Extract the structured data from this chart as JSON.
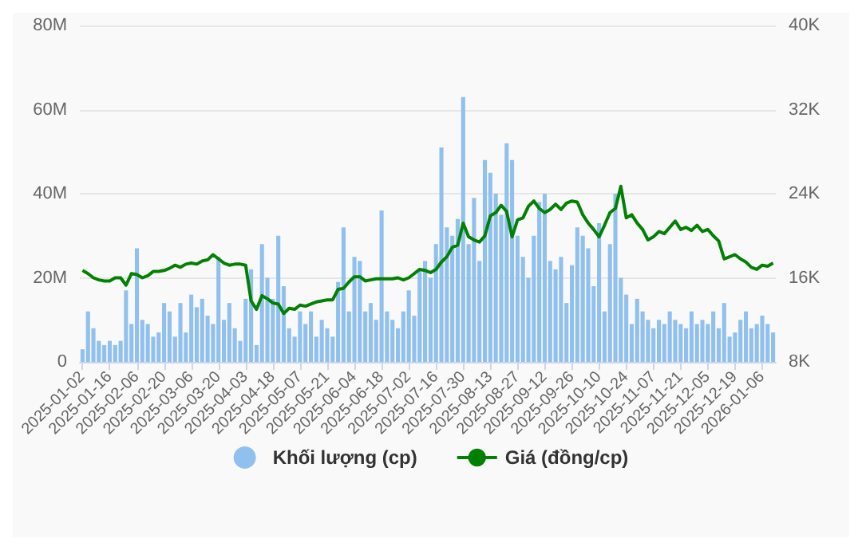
{
  "chart_data": {
    "type": "bar",
    "categories": [
      "2025-01-02",
      null,
      null,
      null,
      null,
      "2025-01-16",
      null,
      null,
      null,
      null,
      "2025-02-06",
      null,
      null,
      null,
      null,
      "2025-02-20",
      null,
      null,
      null,
      null,
      "2025-03-06",
      null,
      null,
      null,
      null,
      "2025-03-20",
      null,
      null,
      null,
      null,
      "2025-04-03",
      null,
      null,
      null,
      null,
      "2025-04-18",
      null,
      null,
      null,
      null,
      "2025-05-07",
      null,
      null,
      null,
      null,
      "2025-05-21",
      null,
      null,
      null,
      null,
      "2025-06-04",
      null,
      null,
      null,
      null,
      "2025-06-18",
      null,
      null,
      null,
      null,
      "2025-07-02",
      null,
      null,
      null,
      null,
      "2025-07-16",
      null,
      null,
      null,
      null,
      "2025-07-30",
      null,
      null,
      null,
      null,
      "2025-08-13",
      null,
      null,
      null,
      null,
      "2025-08-27",
      null,
      null,
      null,
      null,
      "2025-09-12",
      null,
      null,
      null,
      null,
      "2025-09-26",
      null,
      null,
      null,
      null,
      "2025-10-10",
      null,
      null,
      null,
      null,
      "2025-10-24",
      null,
      null,
      null,
      null,
      "2025-11-07",
      null,
      null,
      null,
      null,
      "2025-11-21",
      null,
      null,
      null,
      null,
      "2025-12-05",
      null,
      null,
      null,
      null,
      "2025-12-19",
      null,
      null,
      null,
      null,
      "2026-01-06",
      null,
      null
    ],
    "series": [
      {
        "name": "Khối lượng (cp)",
        "color": "#90c0ee",
        "values": [
          3,
          12,
          8,
          5,
          4,
          5,
          4,
          5,
          17,
          9,
          27,
          10,
          9,
          6,
          7,
          14,
          12,
          6,
          14,
          7,
          16,
          13,
          15,
          11,
          9,
          25,
          10,
          14,
          8,
          5,
          15,
          22,
          4,
          28,
          20,
          15,
          30,
          18,
          8,
          6,
          12,
          9,
          12,
          6,
          10,
          8,
          6,
          19,
          32,
          12,
          25,
          24,
          12,
          14,
          10,
          36,
          12,
          10,
          8,
          12,
          17,
          11,
          22,
          24,
          20,
          28,
          51,
          32,
          30,
          34,
          63,
          28,
          39,
          24,
          48,
          45,
          40,
          35,
          52,
          48,
          30,
          25,
          20,
          30,
          38,
          40,
          24,
          22,
          25,
          14,
          23,
          32,
          30,
          27,
          18,
          33,
          12,
          28,
          40,
          20,
          16,
          9,
          15,
          12,
          10,
          8,
          10,
          9,
          12,
          10,
          9,
          8,
          12,
          9,
          10,
          9,
          12,
          8,
          14,
          6,
          7,
          10,
          12,
          8,
          9,
          11,
          9,
          7
        ]
      },
      {
        "name": "Giá (đồng/cp)",
        "type": "line",
        "axis": "y2",
        "color": "#008000",
        "values": [
          16.7,
          16.4,
          16.0,
          15.8,
          15.7,
          15.7,
          16.0,
          16.0,
          15.3,
          16.4,
          16.3,
          16.0,
          16.2,
          16.6,
          16.6,
          16.7,
          16.9,
          17.2,
          17.0,
          17.3,
          17.4,
          17.3,
          17.6,
          17.7,
          18.2,
          17.8,
          17.4,
          17.2,
          17.3,
          17.3,
          17.2,
          13.8,
          13.0,
          14.3,
          14.0,
          13.6,
          13.5,
          12.6,
          13.1,
          13.0,
          13.4,
          13.3,
          13.5,
          13.7,
          13.8,
          13.9,
          13.9,
          14.9,
          15.0,
          15.6,
          16.1,
          16.1,
          15.7,
          15.8,
          15.9,
          15.9,
          15.9,
          15.9,
          16.0,
          15.8,
          16.0,
          16.4,
          16.8,
          16.7,
          16.5,
          16.8,
          17.5,
          18.0,
          18.9,
          19.1,
          21.2,
          19.9,
          19.6,
          19.4,
          20.0,
          21.9,
          22.2,
          22.9,
          22.3,
          19.9,
          21.5,
          21.7,
          22.8,
          23.3,
          22.6,
          22.2,
          22.5,
          23.0,
          22.5,
          23.1,
          23.3,
          23.2,
          22.0,
          21.2,
          20.6,
          19.9,
          21.0,
          22.2,
          22.6,
          24.7,
          21.7,
          22.0,
          21.2,
          20.6,
          19.6,
          19.9,
          20.4,
          20.2,
          20.8,
          21.4,
          20.6,
          20.8,
          20.5,
          21.0,
          20.4,
          20.6,
          20.0,
          19.5,
          17.8,
          18.0,
          18.2,
          17.8,
          17.5,
          17.0,
          16.8,
          17.2,
          17.1,
          17.4
        ]
      }
    ],
    "ylim": [
      0,
      80
    ],
    "yticks": [
      {
        "value": 0,
        "label": "0"
      },
      {
        "value": 20,
        "label": "20M"
      },
      {
        "value": 40,
        "label": "40M"
      },
      {
        "value": 60,
        "label": "60M"
      },
      {
        "value": 80,
        "label": "80M"
      }
    ],
    "y2lim": [
      8,
      40
    ],
    "y2ticks": [
      {
        "value": 8,
        "label": "8K"
      },
      {
        "value": 16,
        "label": "16K"
      },
      {
        "value": 24,
        "label": "24K"
      },
      {
        "value": 32,
        "label": "32K"
      },
      {
        "value": 40,
        "label": "40K"
      }
    ],
    "grid": "y",
    "legend": "bottom",
    "marker": "none",
    "line_style": "solid"
  }
}
